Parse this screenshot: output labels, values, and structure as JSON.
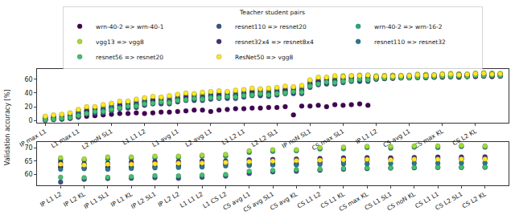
{
  "chart_data": [
    {
      "type": "scatter",
      "y_label": "Validation accuracy [%]",
      "legend_title": "Teacher student pairs",
      "legend": "top",
      "marker": "circle",
      "grid": false,
      "categories": [
        "IP max L1",
        null,
        null,
        null,
        "L1 max L1",
        null,
        null,
        null,
        "L2 noN SL1",
        null,
        null,
        null,
        "L1 L1 L2",
        null,
        null,
        null,
        "L1 avg L1",
        null,
        null,
        null,
        "L2 avg L1",
        null,
        null,
        null,
        "L1 L2 L1",
        null,
        null,
        null,
        "L2 L2 SL1",
        null,
        null,
        null,
        "IP noN SL1",
        null,
        null,
        null,
        "CS max SL1",
        null,
        null,
        null,
        "IP L1 L2",
        null,
        null,
        null,
        "CS avg L1",
        null,
        null,
        null,
        "CS max KL",
        null,
        null,
        null,
        "CS L2 KL",
        null,
        null,
        null
      ],
      "ylim": [
        -3,
        75
      ],
      "yticks": [
        0,
        20,
        40,
        60
      ],
      "series": [
        {
          "name": "wrn-40-2 => wrn-40-1",
          "color": "#440154",
          "values": [
            1,
            2,
            2,
            3,
            5,
            6,
            7,
            8,
            9,
            10,
            10,
            11,
            10,
            11,
            12,
            12,
            13,
            14,
            15,
            15,
            13,
            15,
            16,
            17,
            17,
            18,
            18,
            19,
            19,
            20,
            8,
            21,
            21,
            22,
            20,
            23,
            22,
            23,
            24,
            22,
            60,
            61,
            61.5,
            62,
            62,
            62.5,
            62.5,
            63,
            63,
            63.5,
            63,
            64,
            64,
            64.5,
            64,
            64.5
          ]
        },
        {
          "name": "resnet110 => resnet20",
          "color": "#3b528b",
          "values": [
            0,
            1,
            2,
            3,
            5,
            9,
            10,
            11,
            14,
            17,
            18,
            19,
            22,
            24,
            24,
            24,
            27,
            29,
            29,
            29,
            31,
            32,
            32,
            32,
            34,
            36,
            36,
            35,
            37,
            39,
            39,
            39,
            48,
            52,
            53,
            53,
            55,
            57,
            57,
            57,
            61.5,
            61,
            61.5,
            62,
            62.5,
            63,
            62.5,
            63,
            64.5,
            64,
            63.5,
            64,
            65.5,
            65,
            64.5,
            65
          ]
        },
        {
          "name": "wrn-40-2 => wrn-16-2",
          "color": "#22a884",
          "values": [
            4,
            5,
            7,
            8,
            12,
            14,
            18,
            19,
            21,
            22,
            26,
            27,
            29,
            29,
            32,
            32,
            34,
            34,
            37,
            37,
            38,
            37,
            40,
            40,
            41,
            41,
            44,
            43,
            44,
            44,
            47,
            47,
            55,
            57,
            61,
            61,
            62,
            62,
            65,
            65,
            63.5,
            64,
            65.5,
            65,
            64.5,
            66,
            66.5,
            66,
            66.5,
            67,
            67.5,
            67,
            67.5,
            68,
            68.5,
            68
          ]
        },
        {
          "name": "vgg13 => vgg8",
          "color": "#a5db36",
          "values": [
            5,
            7,
            8,
            10,
            15,
            17,
            19,
            20,
            24,
            25,
            27,
            28,
            32,
            32,
            33,
            33,
            37,
            37,
            38,
            38,
            41,
            40,
            41,
            41,
            44,
            44,
            45,
            44,
            47,
            47,
            48,
            48,
            58,
            60,
            62,
            62,
            65,
            65,
            66,
            66,
            65,
            65.5,
            66,
            65.5,
            66,
            67.5,
            67,
            66.5,
            68,
            68.5,
            68,
            67.5,
            69,
            69.5,
            69,
            68.5
          ]
        },
        {
          "name": "resnet32x4 => resnet8x4",
          "color": "#472d7b",
          "values": [
            3,
            4,
            5,
            6,
            10,
            14,
            15,
            16,
            19,
            22,
            23,
            24,
            27,
            29,
            29,
            29,
            32,
            34,
            34,
            34,
            36,
            37,
            37,
            37,
            39,
            41,
            41,
            40,
            42,
            44,
            44,
            44,
            53,
            57,
            58,
            58,
            60,
            62,
            62,
            62,
            63,
            62.5,
            64.5,
            64,
            64,
            64.5,
            65.5,
            65,
            66,
            65.5,
            66.5,
            66,
            67,
            66.5,
            67.5,
            67
          ]
        },
        {
          "name": "resnet110 => resnet32",
          "color": "#2a788e",
          "values": [
            2,
            3,
            3,
            5,
            9,
            11,
            12,
            15,
            18,
            19,
            20,
            23,
            26,
            26,
            26,
            28,
            31,
            31,
            31,
            33,
            35,
            34,
            34,
            36,
            38,
            38,
            38,
            39,
            41,
            41,
            41,
            43,
            52,
            54,
            55,
            57,
            59,
            59,
            59,
            61,
            62,
            62.5,
            63,
            62.5,
            63,
            64.5,
            64,
            63.5,
            65,
            65.5,
            65,
            64.5,
            66,
            66.5,
            66,
            65.5
          ]
        },
        {
          "name": "resnet56 => resnet20",
          "color": "#44bf70",
          "values": [
            1,
            2,
            3,
            4,
            7,
            10,
            13,
            13,
            16,
            18,
            21,
            21,
            24,
            25,
            27,
            26,
            29,
            30,
            32,
            31,
            33,
            33,
            35,
            34,
            36,
            37,
            39,
            37,
            39,
            40,
            42,
            41,
            50,
            53,
            56,
            55,
            57,
            58,
            60,
            59,
            61,
            61.5,
            62,
            62,
            62,
            63,
            63,
            63.5,
            64,
            64,
            64.5,
            64,
            65,
            65,
            65.5,
            65
          ]
        },
        {
          "name": "ResNet50 => vgg8",
          "color": "#fde725",
          "values": [
            6,
            8,
            9,
            11,
            16,
            20,
            20,
            23,
            25,
            28,
            28,
            31,
            33,
            35,
            34,
            36,
            38,
            40,
            39,
            41,
            42,
            43,
            42,
            44,
            45,
            47,
            46,
            47,
            48,
            50,
            49,
            51,
            59,
            63,
            63,
            65,
            64,
            65,
            65,
            66,
            64,
            64.5,
            64.5,
            65,
            65,
            66.5,
            65.5,
            66,
            67,
            67.5,
            66.5,
            67,
            68,
            68.5,
            67.5,
            68
          ]
        }
      ]
    },
    {
      "type": "scatter",
      "marker": "circle",
      "grid": false,
      "categories": [
        "IP L1 L2",
        "IP L2 KL",
        "IP L1 SL1",
        "IP L1 KL",
        "IP L2 SL1",
        "IP L2 L2",
        "L1 L1 L2",
        "L1 CS L2",
        "CS avg L1",
        "CS avg SL1",
        "CS avg KL",
        "CS L1 L2",
        "CS L1 KL",
        "CS max KL",
        "CS L1 SL1",
        "CS noN KL",
        "CS L1 L1",
        "CS L2 SL1",
        "CS L2 KL"
      ],
      "ylim": [
        56,
        72
      ],
      "yticks": [
        60,
        65,
        70
      ],
      "series": [
        {
          "name": "wrn-40-2 => wrn-40-1",
          "color": "#440154",
          "values": [
            62.8,
            62.5,
            62.6,
            62.8,
            63.0,
            63.2,
            63.3,
            64.0,
            63.8,
            63.8,
            64.0,
            64.5,
            65.0,
            65.5,
            66.0,
            65.8,
            66.2,
            65.8,
            66.0
          ]
        },
        {
          "name": "resnet110 => resnet20",
          "color": "#3b528b",
          "values": [
            57.2,
            58.2,
            58.5,
            58.6,
            58.8,
            58.6,
            59.0,
            59.4,
            60.4,
            61.0,
            61.2,
            61.6,
            62.0,
            62.2,
            62.4,
            62.5,
            62.6,
            62.6,
            62.7
          ]
        },
        {
          "name": "wrn-40-2 => wrn-16-2",
          "color": "#22a884",
          "values": [
            65.5,
            65.3,
            65.8,
            66.0,
            66.2,
            66.4,
            66.8,
            66.8,
            68.2,
            68.6,
            68.8,
            69.5,
            69.6,
            70.0,
            69.8,
            70.2,
            70.0,
            70.4,
            70.2
          ]
        },
        {
          "name": "vgg13 => vgg8",
          "color": "#a5db36",
          "values": [
            66.2,
            65.8,
            66.5,
            66.5,
            66.8,
            66.8,
            67.2,
            67.5,
            68.8,
            69.2,
            69.2,
            70.0,
            70.2,
            70.5,
            70.4,
            70.6,
            70.6,
            70.8,
            70.6
          ]
        },
        {
          "name": "resnet32x4 => resnet8x4",
          "color": "#472d7b",
          "values": [
            64.5,
            64.0,
            64.2,
            64.6,
            64.8,
            64.8,
            65.0,
            65.0,
            65.5,
            65.6,
            65.8,
            66.0,
            66.2,
            66.3,
            66.2,
            66.4,
            66.5,
            66.5,
            66.6
          ]
        },
        {
          "name": "resnet110 => resnet32",
          "color": "#2a788e",
          "values": [
            62.0,
            62.2,
            62.0,
            62.3,
            62.5,
            62.6,
            62.8,
            63.2,
            63.4,
            63.6,
            63.6,
            63.8,
            64.0,
            64.0,
            64.1,
            64.2,
            64.2,
            64.3,
            64.3
          ]
        },
        {
          "name": "resnet56 => resnet20",
          "color": "#44bf70",
          "values": [
            59.0,
            58.8,
            59.0,
            59.2,
            59.6,
            59.5,
            59.8,
            60.0,
            61.2,
            61.5,
            61.8,
            62.0,
            62.3,
            62.4,
            62.5,
            62.6,
            62.7,
            62.7,
            62.8
          ]
        },
        {
          "name": "ResNet50 => vgg8",
          "color": "#fde725",
          "values": [
            63.8,
            63.5,
            63.8,
            63.8,
            64.0,
            64.2,
            64.3,
            64.5,
            64.8,
            65.0,
            65.2,
            65.3,
            65.5,
            65.6,
            65.5,
            65.7,
            65.7,
            65.8,
            65.8
          ]
        }
      ]
    }
  ]
}
